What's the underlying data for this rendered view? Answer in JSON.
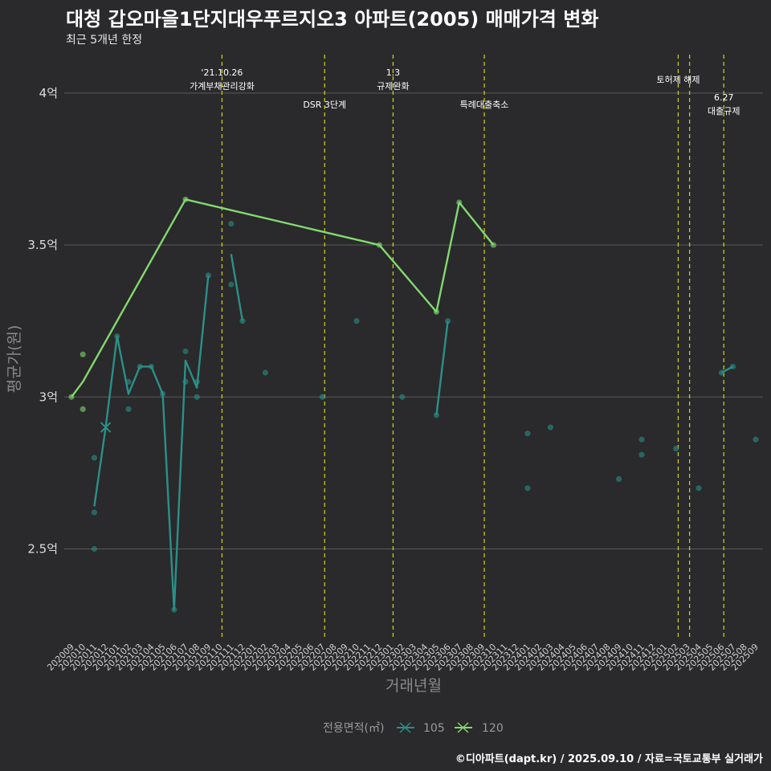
{
  "title": "대청 갑오마을1단지대우푸르지오3 아파트(2005) 매매가격 변화",
  "subtitle": "최근 5개년 한정",
  "caption": "©디아파트(dapt.kr) / 2025.09.10 / 자료=국토교통부 실거래가",
  "colors": {
    "background": "#2a292b",
    "grid": "#5b5b5b",
    "vline": "#cfd81b",
    "s105": "#2a9089",
    "s120": "#82d96f"
  },
  "chart_data": {
    "type": "line",
    "xlabel": "거래년월",
    "ylabel": "평균가(원)",
    "ylim": [
      2.2,
      4.1
    ],
    "grid": true,
    "legend_position": "bottom",
    "legend_title": "전용면적(㎡)",
    "y_ticks": [
      {
        "value": 2.5,
        "label": "2.5억"
      },
      {
        "value": 3.0,
        "label": "3억"
      },
      {
        "value": 3.5,
        "label": "3.5억"
      },
      {
        "value": 4.0,
        "label": "4억"
      }
    ],
    "x_categories": [
      "202009",
      "202010",
      "202011",
      "202012",
      "202101",
      "202102",
      "202103",
      "202104",
      "202105",
      "202106",
      "202107",
      "202108",
      "202109",
      "202110",
      "202111",
      "202112",
      "202201",
      "202202",
      "202203",
      "202204",
      "202205",
      "202206",
      "202207",
      "202208",
      "202209",
      "202210",
      "202211",
      "202212",
      "202301",
      "202302",
      "202303",
      "202304",
      "202305",
      "202306",
      "202307",
      "202308",
      "202309",
      "202310",
      "202311",
      "202312",
      "202401",
      "202402",
      "202403",
      "202404",
      "202405",
      "202406",
      "202407",
      "202408",
      "202409",
      "202410",
      "202411",
      "202412",
      "202501",
      "202502",
      "202503",
      "202504",
      "202505",
      "202506",
      "202507",
      "202508",
      "202509"
    ],
    "series": [
      {
        "name": "105",
        "line": [
          {
            "x": "202011",
            "y": 2.64
          },
          {
            "x": "202012",
            "y": 2.9
          },
          {
            "x": "202101",
            "y": 3.2
          },
          {
            "x": "202102",
            "y": 3.01
          },
          {
            "x": "202103",
            "y": 3.1
          },
          {
            "x": "202104",
            "y": 3.1
          },
          {
            "x": "202105",
            "y": 3.01
          },
          {
            "x": "202106",
            "y": 2.3
          },
          {
            "x": "202107",
            "y": 3.12
          },
          {
            "x": "202108",
            "y": 3.03
          },
          {
            "x": "202109",
            "y": 3.4
          },
          {
            "x": "202111",
            "y": 3.47
          },
          {
            "x": "202112",
            "y": 3.25
          },
          {
            "x": "202305",
            "y": 2.94
          },
          {
            "x": "202306",
            "y": 3.25
          },
          {
            "x": "202506",
            "y": 3.08
          },
          {
            "x": "202507",
            "y": 3.1
          }
        ],
        "breaks_after": [
          "202109",
          "202112",
          "202306"
        ],
        "points": [
          {
            "x": "202011",
            "y": 2.8
          },
          {
            "x": "202011",
            "y": 2.62
          },
          {
            "x": "202011",
            "y": 2.5
          },
          {
            "x": "202101",
            "y": 3.2
          },
          {
            "x": "202102",
            "y": 3.05
          },
          {
            "x": "202102",
            "y": 2.96
          },
          {
            "x": "202103",
            "y": 3.1
          },
          {
            "x": "202104",
            "y": 3.1
          },
          {
            "x": "202105",
            "y": 3.01
          },
          {
            "x": "202106",
            "y": 2.3
          },
          {
            "x": "202107",
            "y": 3.15
          },
          {
            "x": "202107",
            "y": 3.05
          },
          {
            "x": "202108",
            "y": 3.05
          },
          {
            "x": "202108",
            "y": 3.0
          },
          {
            "x": "202109",
            "y": 3.4
          },
          {
            "x": "202111",
            "y": 3.57
          },
          {
            "x": "202111",
            "y": 3.37
          },
          {
            "x": "202112",
            "y": 3.25
          },
          {
            "x": "202202",
            "y": 3.08
          },
          {
            "x": "202207",
            "y": 3.0
          },
          {
            "x": "202210",
            "y": 3.25
          },
          {
            "x": "202302",
            "y": 3.0
          },
          {
            "x": "202305",
            "y": 2.94
          },
          {
            "x": "202306",
            "y": 3.25
          },
          {
            "x": "202401",
            "y": 2.88
          },
          {
            "x": "202401",
            "y": 2.7
          },
          {
            "x": "202403",
            "y": 2.9
          },
          {
            "x": "202409",
            "y": 2.73
          },
          {
            "x": "202411",
            "y": 2.86
          },
          {
            "x": "202411",
            "y": 2.81
          },
          {
            "x": "202502",
            "y": 2.83
          },
          {
            "x": "202504",
            "y": 2.7
          },
          {
            "x": "202506",
            "y": 3.08
          },
          {
            "x": "202507",
            "y": 3.1
          },
          {
            "x": "202509",
            "y": 2.86
          }
        ],
        "highlight": {
          "x": "202012",
          "y": 2.9
        }
      },
      {
        "name": "120",
        "line": [
          {
            "x": "202009",
            "y": 3.0
          },
          {
            "x": "202010",
            "y": 3.05
          },
          {
            "x": "202107",
            "y": 3.65
          },
          {
            "x": "202212",
            "y": 3.5
          },
          {
            "x": "202305",
            "y": 3.28
          },
          {
            "x": "202307",
            "y": 3.64
          },
          {
            "x": "202310",
            "y": 3.5
          }
        ],
        "points": [
          {
            "x": "202009",
            "y": 3.0
          },
          {
            "x": "202010",
            "y": 3.14
          },
          {
            "x": "202010",
            "y": 2.96
          },
          {
            "x": "202107",
            "y": 3.65
          },
          {
            "x": "202212",
            "y": 3.5
          },
          {
            "x": "202305",
            "y": 3.28
          },
          {
            "x": "202307",
            "y": 3.64
          },
          {
            "x": "202310",
            "y": 3.5
          }
        ]
      }
    ],
    "annotations": [
      {
        "x": 13.2,
        "lines": [
          "'21.10.26",
          "가계부채관리강화"
        ],
        "level": "top"
      },
      {
        "x": 22.2,
        "lines": [
          "DSR 3단계"
        ],
        "level": "mid"
      },
      {
        "x": 28.2,
        "lines": [
          "1.3",
          "규제완화"
        ],
        "level": "top"
      },
      {
        "x": 36.2,
        "lines": [
          "특례대출축소"
        ],
        "level": "mid"
      },
      {
        "x": 53.2,
        "lines": [
          "토허제 해제"
        ],
        "level": "top"
      },
      {
        "x": 54.2,
        "lines": [],
        "level": "none"
      },
      {
        "x": 57.2,
        "lines": [
          "6.27",
          "대출규제"
        ],
        "level": "low"
      }
    ]
  }
}
